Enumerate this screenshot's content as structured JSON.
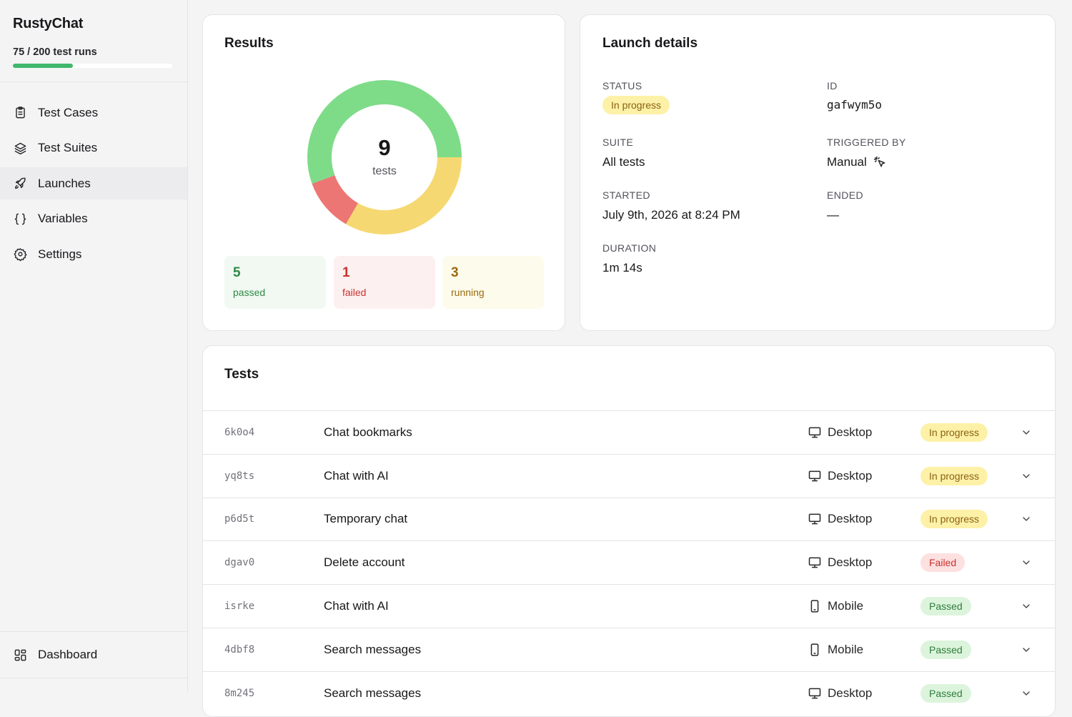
{
  "app": {
    "name": "RustyChat",
    "usage_text": "75 / 200 test runs",
    "usage_fraction": 0.375
  },
  "sidebar": {
    "items": [
      {
        "label": "Test Cases",
        "icon": "clipboard-icon",
        "active": false
      },
      {
        "label": "Test Suites",
        "icon": "layers-icon",
        "active": false
      },
      {
        "label": "Launches",
        "icon": "rocket-icon",
        "active": true
      },
      {
        "label": "Variables",
        "icon": "braces-icon",
        "active": false
      },
      {
        "label": "Settings",
        "icon": "gear-icon",
        "active": false
      }
    ],
    "bottom_item": {
      "label": "Dashboard",
      "icon": "dashboard-grid-icon"
    }
  },
  "results": {
    "title": "Results",
    "total": "9",
    "total_label": "tests",
    "passed": {
      "count": "5",
      "label": "passed"
    },
    "failed": {
      "count": "1",
      "label": "failed"
    },
    "running": {
      "count": "3",
      "label": "running"
    },
    "colors": {
      "passed": "#7edc88",
      "failed": "#ec7674",
      "running": "#f6d873"
    }
  },
  "launch": {
    "title": "Launch details",
    "status_label": "STATUS",
    "status_value": "In progress",
    "id_label": "ID",
    "id_value": "gafwym5o",
    "suite_label": "SUITE",
    "suite_value": "All tests",
    "triggered_label": "TRIGGERED BY",
    "triggered_value": "Manual",
    "started_label": "STARTED",
    "started_value": "July 9th, 2026 at 8:24 PM",
    "ended_label": "ENDED",
    "ended_value": "—",
    "duration_label": "DURATION",
    "duration_value": "1m 14s"
  },
  "tests": {
    "title": "Tests",
    "rows": [
      {
        "id": "6k0o4",
        "name": "Chat bookmarks",
        "device": "Desktop",
        "status": "In progress"
      },
      {
        "id": "yq8ts",
        "name": "Chat with AI",
        "device": "Desktop",
        "status": "In progress"
      },
      {
        "id": "p6d5t",
        "name": "Temporary chat",
        "device": "Desktop",
        "status": "In progress"
      },
      {
        "id": "dgav0",
        "name": "Delete account",
        "device": "Desktop",
        "status": "Failed"
      },
      {
        "id": "isrke",
        "name": "Chat with AI",
        "device": "Mobile",
        "status": "Passed"
      },
      {
        "id": "4dbf8",
        "name": "Search messages",
        "device": "Mobile",
        "status": "Passed"
      },
      {
        "id": "8m245",
        "name": "Search messages",
        "device": "Desktop",
        "status": "Passed"
      }
    ]
  }
}
